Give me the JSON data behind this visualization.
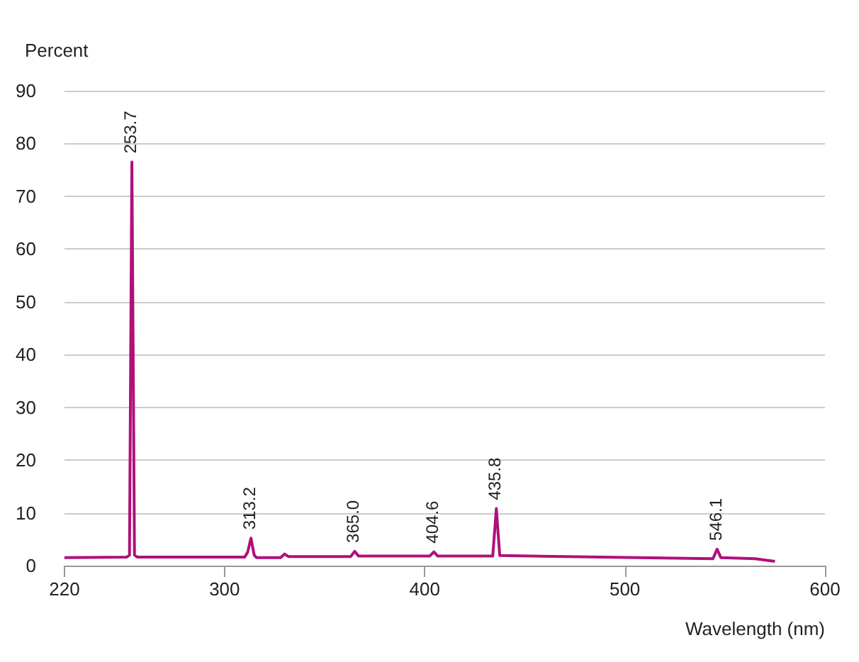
{
  "chart_data": {
    "type": "line",
    "ylabel": "Percent",
    "xlabel": "Wavelength (nm)",
    "x": [
      220,
      251,
      252.5,
      253.7,
      255,
      256.5,
      310,
      311.5,
      313.2,
      314.8,
      316,
      328,
      330,
      332,
      363,
      365,
      367,
      402.5,
      404.6,
      406.5,
      434,
      435.8,
      437.5,
      544,
      546.1,
      548,
      565,
      575
    ],
    "series": [
      {
        "color": "#b0107a",
        "values": [
          1.5,
          1.6,
          2,
          76.5,
          2,
          1.6,
          1.6,
          2.5,
          5.2,
          2,
          1.5,
          1.5,
          2.2,
          1.7,
          1.7,
          2.7,
          1.8,
          1.8,
          2.6,
          1.8,
          1.8,
          10.8,
          1.9,
          1.3,
          3.1,
          1.5,
          1.3,
          0.8
        ]
      }
    ],
    "xlim": [
      220,
      600
    ],
    "xticks": [
      220,
      300,
      400,
      500,
      600
    ],
    "ylim": [
      0,
      90
    ],
    "yticks": [
      0,
      10,
      20,
      30,
      40,
      50,
      60,
      70,
      80,
      90
    ],
    "grid": "y",
    "marker": "none",
    "line_style": "solid",
    "annotations": [
      {
        "text": "253.7",
        "x": 253.7,
        "y": 76.5
      },
      {
        "text": "313.2",
        "x": 313.2,
        "y": 5.2
      },
      {
        "text": "365.0",
        "x": 365,
        "y": 2.7
      },
      {
        "text": "404.6",
        "x": 404.6,
        "y": 2.6
      },
      {
        "text": "435.8",
        "x": 435.8,
        "y": 10.8
      },
      {
        "text": "546.1",
        "x": 546.1,
        "y": 3.1
      }
    ]
  }
}
